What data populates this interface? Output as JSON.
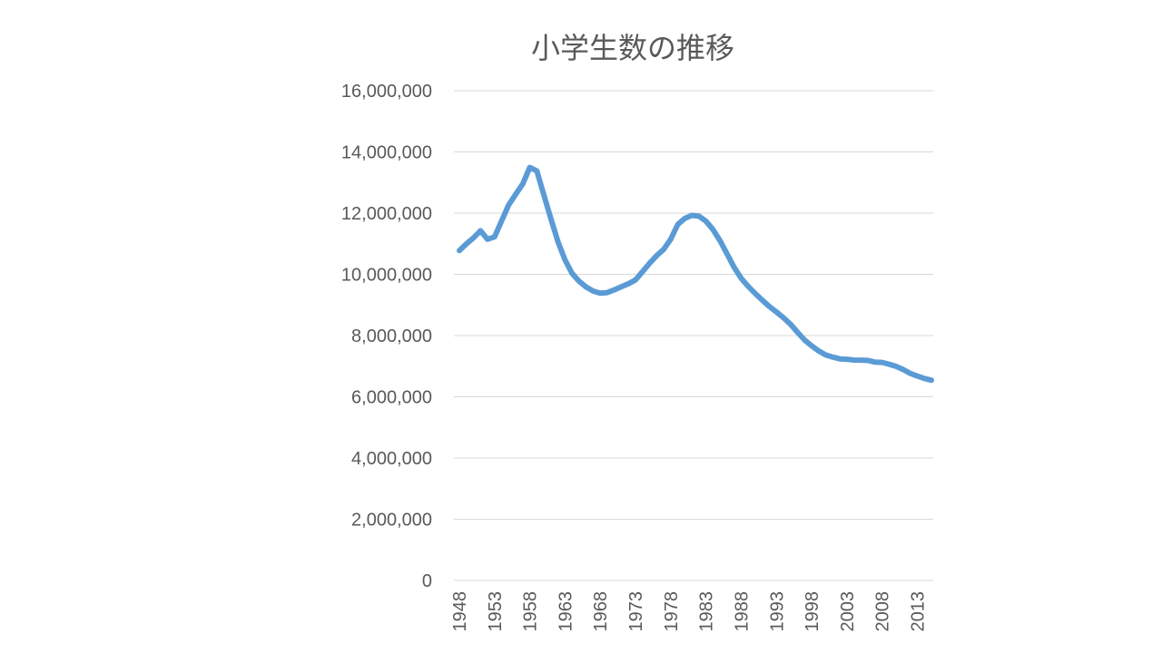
{
  "chart_data": {
    "type": "line",
    "title": "小学生数の推移",
    "xlabel": "",
    "ylabel": "",
    "ylim": [
      0,
      16000000
    ],
    "yticks": [
      0,
      2000000,
      4000000,
      6000000,
      8000000,
      10000000,
      12000000,
      14000000,
      16000000
    ],
    "ytick_labels": [
      "0",
      "2,000,000",
      "4,000,000",
      "6,000,000",
      "8,000,000",
      "10,000,000",
      "12,000,000",
      "14,000,000",
      "16,000,000"
    ],
    "xlim": [
      1948,
      2015
    ],
    "xtick_labels": [
      "1948",
      "1953",
      "1958",
      "1963",
      "1968",
      "1973",
      "1978",
      "1983",
      "1988",
      "1993",
      "1998",
      "2003",
      "2008",
      "2013"
    ],
    "grid": true,
    "legend": "none",
    "series": [
      {
        "color": "#5b9bd5",
        "x": [
          1948,
          1949,
          1950,
          1951,
          1952,
          1953,
          1954,
          1955,
          1956,
          1957,
          1958,
          1959,
          1960,
          1961,
          1962,
          1963,
          1964,
          1965,
          1966,
          1967,
          1968,
          1969,
          1970,
          1971,
          1972,
          1973,
          1974,
          1975,
          1976,
          1977,
          1978,
          1979,
          1980,
          1981,
          1982,
          1983,
          1984,
          1985,
          1986,
          1987,
          1988,
          1989,
          1990,
          1991,
          1992,
          1993,
          1994,
          1995,
          1996,
          1997,
          1998,
          1999,
          2000,
          2001,
          2002,
          2003,
          2004,
          2005,
          2006,
          2007,
          2008,
          2009,
          2010,
          2011,
          2012,
          2013,
          2014,
          2015
        ],
        "values": [
          10775000,
          11000000,
          11191000,
          11425000,
          11148000,
          11225000,
          11750000,
          12267000,
          12616000,
          12956000,
          13492000,
          13375000,
          12591000,
          11811000,
          11057000,
          10471000,
          10031000,
          9776000,
          9584000,
          9452000,
          9383000,
          9403000,
          9493000,
          9596000,
          9696000,
          9816000,
          10089000,
          10365000,
          10609000,
          10819000,
          11146000,
          11630000,
          11827000,
          11925000,
          11902000,
          11739000,
          11465000,
          11095000,
          10666000,
          10227000,
          9872000,
          9607000,
          9373000,
          9157000,
          8947000,
          8769000,
          8583000,
          8370000,
          8106000,
          7855000,
          7664000,
          7500000,
          7366000,
          7297000,
          7239000,
          7227000,
          7201000,
          7197000,
          7187000,
          7132000,
          7122000,
          7064000,
          6993000,
          6888000,
          6765000,
          6677000,
          6600000,
          6543000
        ]
      }
    ]
  }
}
